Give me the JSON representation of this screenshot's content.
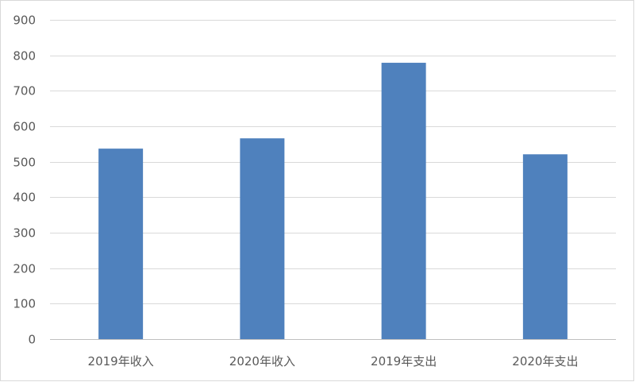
{
  "chart_data": {
    "type": "bar",
    "categories": [
      "2019年收入",
      "2020年收入",
      "2019年支出",
      "2020年支出"
    ],
    "values": [
      537,
      566,
      779,
      521
    ],
    "ylim": [
      0,
      900
    ],
    "yticks": [
      0,
      100,
      200,
      300,
      400,
      500,
      600,
      700,
      800,
      900
    ],
    "grid": true,
    "legend": "none",
    "colors": {
      "bar": "#4f81bd",
      "grid": "#d9d9d9",
      "axis": "#bfbfbf",
      "text": "#595959"
    }
  }
}
